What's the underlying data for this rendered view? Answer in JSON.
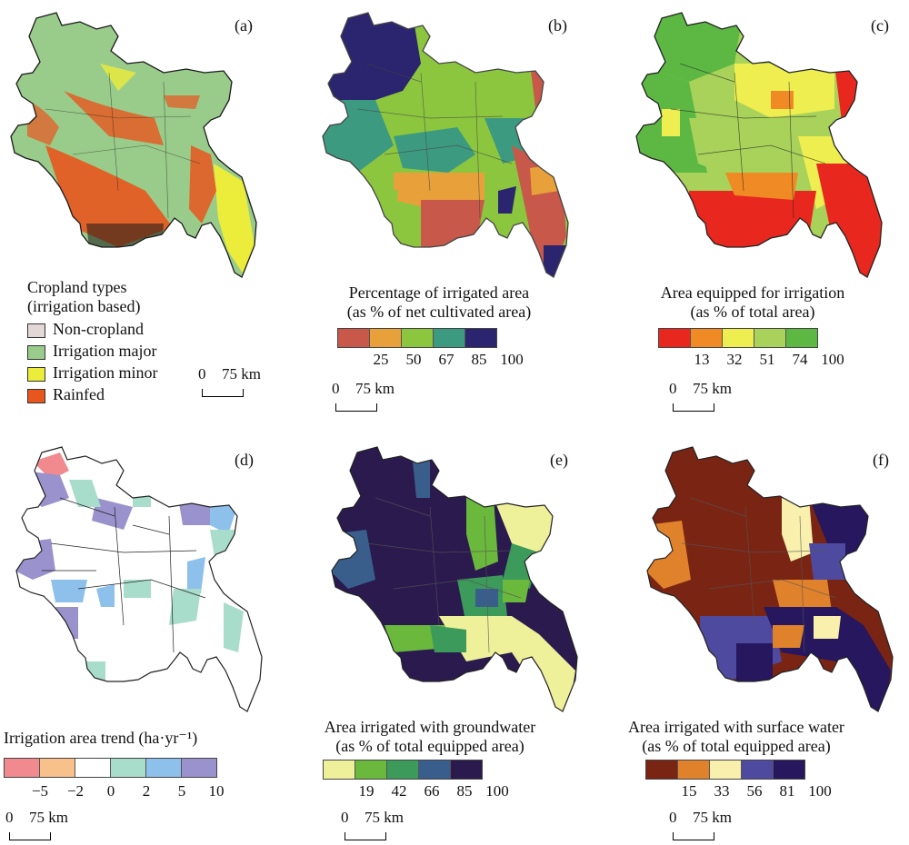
{
  "colors": {
    "noncrop": "#e3d8d6",
    "major": "#99cc8a",
    "minor": "#ecec3a",
    "rainfed": "#e8561e",
    "border": "#1a1a1a"
  },
  "scale_label": {
    "zero": "0",
    "km": "75 km"
  },
  "panels": {
    "a": {
      "label": "(a)",
      "legend_title": [
        "Cropland types",
        "(irrigation based)"
      ],
      "categories": [
        {
          "label": "Non-cropland",
          "color": "#e3d8d6"
        },
        {
          "label": "Irrigation major",
          "color": "#99cc8a"
        },
        {
          "label": "Irrigation minor",
          "color": "#ecec3a"
        },
        {
          "label": "Rainfed",
          "color": "#e8561e"
        }
      ]
    },
    "b": {
      "label": "(b)",
      "legend_title": [
        "Percentage of irrigated area",
        "(as % of net cultivated area)"
      ],
      "colors": [
        "#c8584a",
        "#e8a03a",
        "#8cc63e",
        "#3c9a80",
        "#2b246e"
      ],
      "ticks": [
        "25",
        "50",
        "67",
        "85",
        "100"
      ]
    },
    "c": {
      "label": "(c)",
      "legend_title": [
        "Area equipped for irrigation",
        "(as % of total area)"
      ],
      "colors": [
        "#e8281e",
        "#f08a24",
        "#eeee50",
        "#a8d25a",
        "#5cb843"
      ],
      "ticks": [
        "13",
        "32",
        "51",
        "74",
        "100"
      ]
    },
    "d": {
      "label": "(d)",
      "legend_title": [
        "Irrigation area trend (ha·yr⁻¹)"
      ],
      "colors": [
        "#f08a8e",
        "#f8c08a",
        "#ffffff",
        "#a8dccb",
        "#8ec0ec",
        "#9a92cc"
      ],
      "ticks": [
        "−5",
        "−2",
        "0",
        "2",
        "5",
        "10"
      ]
    },
    "e": {
      "label": "(e)",
      "legend_title": [
        "Area irrigated with groundwater",
        "(as % of total equipped area)"
      ],
      "colors": [
        "#eef09a",
        "#6ab83c",
        "#3c9a5a",
        "#3a5e8c",
        "#2a1a4e"
      ],
      "ticks": [
        "19",
        "42",
        "66",
        "85",
        "100"
      ]
    },
    "f": {
      "label": "(f)",
      "legend_title": [
        "Area irrigated with surface water",
        "(as % of total equipped area)"
      ],
      "colors": [
        "#7a2414",
        "#e0822c",
        "#f8f0ac",
        "#4e4aa0",
        "#26175e"
      ],
      "ticks": [
        "15",
        "33",
        "56",
        "81",
        "100"
      ]
    }
  }
}
